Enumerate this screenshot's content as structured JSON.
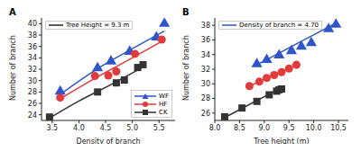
{
  "chart_data": [
    {
      "type": "scatter",
      "title": "A",
      "annotation": "Tree Height = 9.3 m",
      "annotation_color": "#222222",
      "x_label": "Density of branch",
      "y_label": "Number of branch",
      "xlim": [
        3.3,
        5.8
      ],
      "xticks": [
        3.5,
        {
          "value": 4,
          "label": "4.0"
        },
        4.5,
        {
          "value": 5,
          "label": "5.0"
        },
        5.5
      ],
      "ylim": [
        23,
        41
      ],
      "yticks": [
        24,
        26,
        28,
        30,
        32,
        34,
        36,
        38,
        40
      ],
      "legend": "lower right",
      "series": [
        {
          "name": "WF",
          "color": "#2f55c8",
          "marker": "triangle",
          "x": [
            3.65,
            4.35,
            4.6,
            4.95,
            5.45,
            5.6
          ],
          "values": [
            28.1,
            32.2,
            33.4,
            35.1,
            37.6,
            40.0
          ],
          "fit": {
            "x": [
              3.65,
              4.3,
              5.0,
              5.6
            ],
            "values": [
              27.6,
              31.8,
              35.6,
              38.7
            ]
          }
        },
        {
          "name": "HF",
          "color": "#e23b3b",
          "marker": "circle",
          "x": [
            3.65,
            4.3,
            4.55,
            4.7,
            5.05,
            5.55
          ],
          "values": [
            27.0,
            30.8,
            30.9,
            31.6,
            34.7,
            37.2
          ],
          "fit": {
            "x": [
              3.65,
              4.3,
              5.0,
              5.55
            ],
            "values": [
              26.8,
              30.4,
              34.0,
              36.9
            ]
          }
        },
        {
          "name": "CK",
          "color": "#333333",
          "marker": "square",
          "x": [
            3.45,
            4.35,
            4.7,
            4.85,
            5.1,
            5.2
          ],
          "values": [
            23.6,
            28.0,
            29.6,
            30.1,
            32.3,
            32.8
          ],
          "fit": {
            "x": [
              3.45,
              4.0,
              4.6,
              5.25
            ],
            "values": [
              23.4,
              26.4,
              29.3,
              32.6
            ]
          }
        }
      ]
    },
    {
      "type": "scatter",
      "title": "B",
      "annotation": "Density of branch = 4.70",
      "annotation_color": "#2f55c8",
      "x_label": "Tree height (m)",
      "y_label": "Number of branch",
      "xlim": [
        8,
        10.7
      ],
      "xticks": [
        {
          "value": 8,
          "label": "8.0"
        },
        8.5,
        {
          "value": 9,
          "label": "9.0"
        },
        9.5,
        {
          "value": 10,
          "label": "10.0"
        },
        10.5
      ],
      "ylim": [
        25,
        39
      ],
      "yticks": [
        26,
        28,
        30,
        32,
        34,
        36,
        38
      ],
      "series": [
        {
          "color": "#2f55c8",
          "marker": "triangle",
          "x": [
            8.85,
            9.05,
            9.3,
            9.55,
            9.75,
            9.95,
            10.3,
            10.45
          ],
          "values": [
            32.7,
            33.3,
            33.9,
            34.5,
            35.1,
            35.6,
            37.5,
            38.1
          ],
          "fit": {
            "x": [
              8.85,
              10.45
            ],
            "values": [
              32.6,
              38.3
            ]
          }
        },
        {
          "color": "#e23b3b",
          "marker": "circle",
          "x": [
            8.7,
            8.9,
            9.05,
            9.2,
            9.35,
            9.5,
            9.65
          ],
          "values": [
            29.7,
            30.3,
            30.8,
            31.2,
            31.6,
            32.1,
            32.6
          ],
          "fit": {
            "x": [
              8.7,
              9.65
            ],
            "values": [
              29.7,
              32.6
            ]
          }
        },
        {
          "color": "#333333",
          "marker": "square",
          "x": [
            8.2,
            8.55,
            8.85,
            9.1,
            9.25,
            9.3,
            9.35
          ],
          "values": [
            25.5,
            26.7,
            27.6,
            28.5,
            29.0,
            29.2,
            29.3
          ],
          "fit": {
            "x": [
              8.2,
              9.35
            ],
            "values": [
              25.4,
              29.5
            ]
          }
        }
      ]
    }
  ]
}
